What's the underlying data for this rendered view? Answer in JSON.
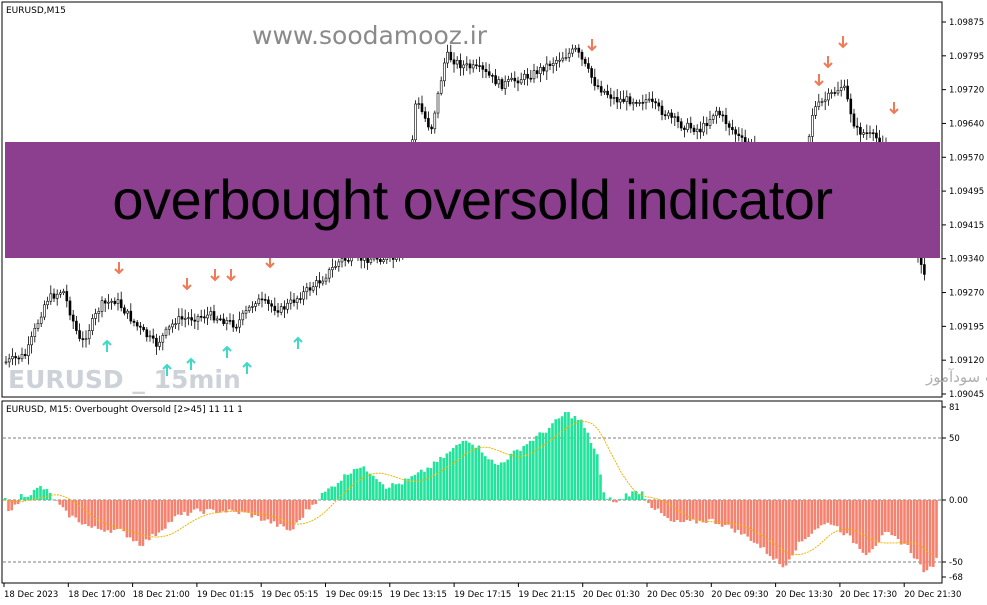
{
  "main_chart": {
    "title": "EURUSD,M15",
    "watermark": "www.soodamooz.ir",
    "symbol_label": "EURUSD _ 15min",
    "persian_label": "انتشار در سایت سودآموز",
    "banner": "overbought oversold indicator",
    "price_ticks": [
      "1.09875",
      "1.09795",
      "1.09720",
      "1.09640",
      "1.09570",
      "1.09495",
      "1.09415",
      "1.09340",
      "1.09270",
      "1.09195",
      "1.09120",
      "1.09045"
    ]
  },
  "indicator": {
    "title": "EURUSD, M15: Overbought Oversold [2>45]  11 11 1",
    "ticks": [
      "81",
      "50",
      "0.00",
      "-50",
      "-68"
    ]
  },
  "time_axis": [
    "18 Dec 2023",
    "18 Dec 17:00",
    "18 Dec 21:00",
    "19 Dec 01:15",
    "19 Dec 05:15",
    "19 Dec 09:15",
    "19 Dec 13:15",
    "19 Dec 17:15",
    "19 Dec 21:15",
    "20 Dec 01:30",
    "20 Dec 05:30",
    "20 Dec 09:30",
    "20 Dec 13:30",
    "20 Dec 17:30",
    "20 Dec 21:30"
  ],
  "chart_data": {
    "type": "bar",
    "price_range": [
      1.09045,
      1.09875
    ],
    "indicator_range": [
      -68,
      81
    ],
    "indicator_levels": [
      50,
      0,
      -50
    ],
    "colors": {
      "positive": "#22e39a",
      "negative": "#f4826e",
      "signal": "#f0b400",
      "up_arrow": "#3fd9c6",
      "down_arrow": "#f07a55",
      "candle": "#000000"
    }
  }
}
